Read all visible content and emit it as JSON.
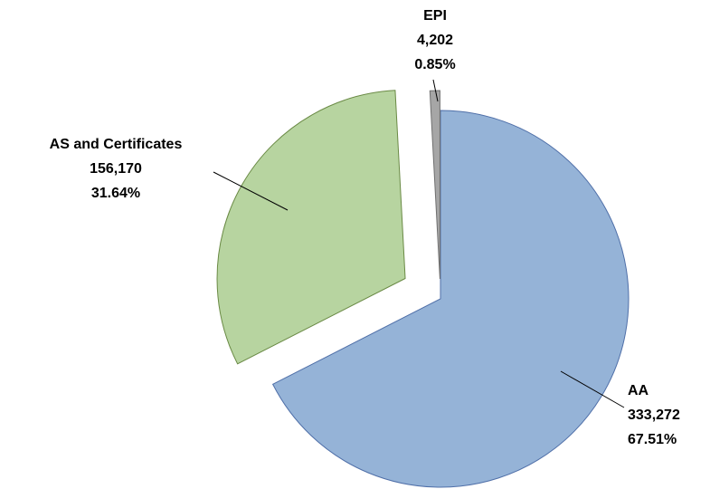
{
  "chart_data": {
    "type": "pie",
    "categories": [
      "AA",
      "AS and Certificates",
      "EPI"
    ],
    "values": [
      333272,
      156170,
      4202
    ],
    "value_labels": [
      "333,272",
      "156,170",
      "4,202"
    ],
    "percents": [
      67.51,
      31.64,
      0.85
    ],
    "percent_labels": [
      "67.51%",
      "31.64%",
      "0.85%"
    ],
    "colors": [
      "#95b3d7",
      "#b7d4a0",
      "#a6a6a6"
    ]
  }
}
